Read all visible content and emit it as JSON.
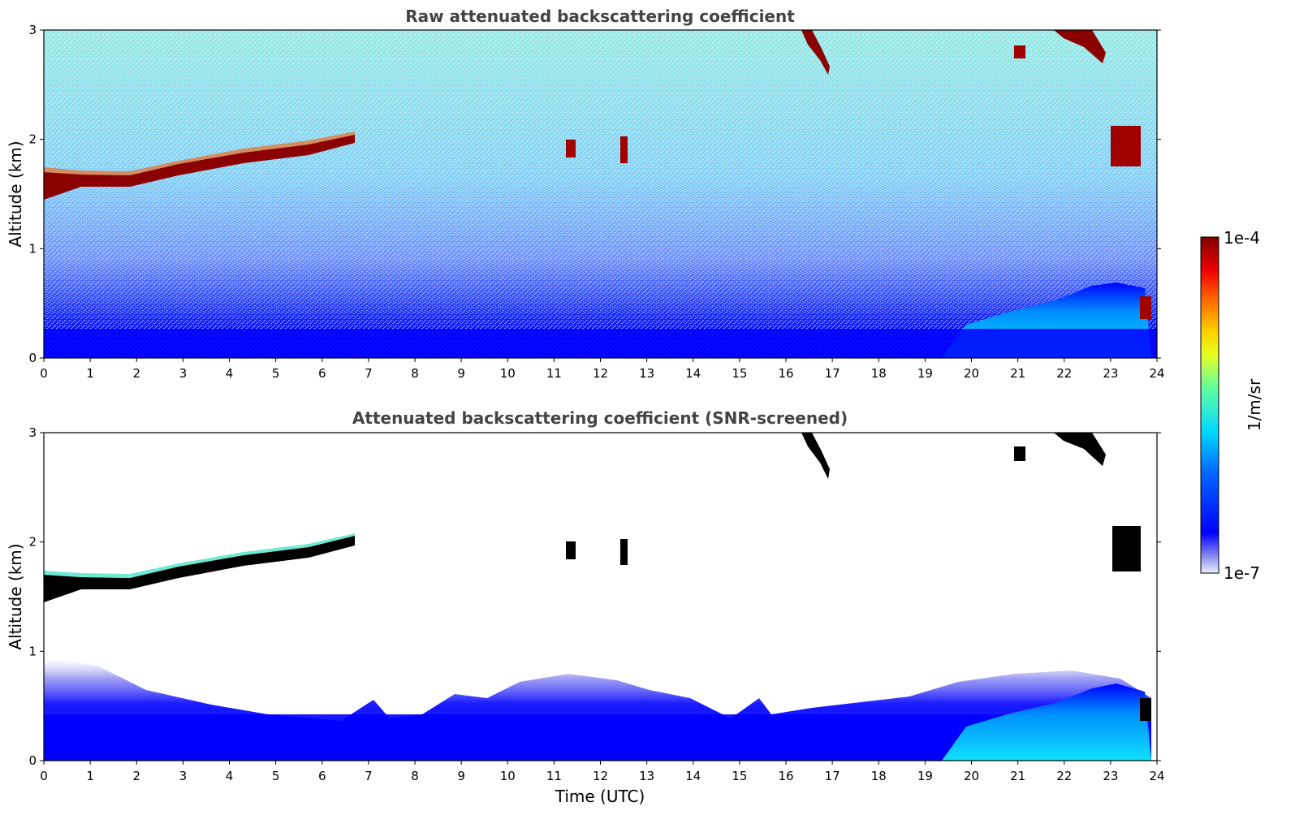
{
  "chart_data": [
    {
      "type": "heatmap",
      "title": "Raw attenuated backscattering coefficient",
      "xlabel": "",
      "ylabel": "Altitude (km)",
      "xlim": [
        0,
        24
      ],
      "ylim": [
        0,
        3
      ],
      "x_ticks": [
        "0",
        "1",
        "2",
        "3",
        "4",
        "5",
        "6",
        "7",
        "8",
        "9",
        "10",
        "11",
        "12",
        "13",
        "14",
        "15",
        "16",
        "17",
        "18",
        "19",
        "20",
        "21",
        "22",
        "23",
        "24"
      ],
      "y_ticks": [
        "0",
        "1",
        "2",
        "3"
      ],
      "features": [
        {
          "kind": "cloud_layer",
          "time_range": [
            0,
            6.7
          ],
          "altitude_km": [
            1.5,
            2.0
          ]
        },
        {
          "kind": "cloud_patch",
          "time": 11.3,
          "altitude_km": 1.9
        },
        {
          "kind": "cloud_patch",
          "time": 12.5,
          "altitude_km": 1.85
        },
        {
          "kind": "cloud_patch",
          "time_range": [
            16.3,
            17.0
          ],
          "altitude_km": [
            2.6,
            3.0
          ]
        },
        {
          "kind": "cloud_patch",
          "time_range": [
            21.7,
            23.0
          ],
          "altitude_km": [
            2.7,
            3.0
          ]
        },
        {
          "kind": "cloud_patch",
          "time_range": [
            23.0,
            23.5
          ],
          "altitude_km": [
            1.8,
            2.1
          ]
        },
        {
          "kind": "boundary_layer",
          "time_range": [
            19.5,
            23.8
          ],
          "altitude_km": [
            0,
            0.7
          ]
        }
      ]
    },
    {
      "type": "heatmap",
      "title": "Attenuated backscattering coefficient (SNR-screened)",
      "xlabel": "Time (UTC)",
      "ylabel": "Altitude (km)",
      "xlim": [
        0,
        24
      ],
      "ylim": [
        0,
        3
      ],
      "x_ticks": [
        "0",
        "1",
        "2",
        "3",
        "4",
        "5",
        "6",
        "7",
        "8",
        "9",
        "10",
        "11",
        "12",
        "13",
        "14",
        "15",
        "16",
        "17",
        "18",
        "19",
        "20",
        "21",
        "22",
        "23",
        "24"
      ],
      "y_ticks": [
        "0",
        "1",
        "2",
        "3"
      ],
      "features": [
        {
          "kind": "cloud_layer",
          "time_range": [
            0,
            6.7
          ],
          "altitude_km": [
            1.5,
            2.0
          ]
        },
        {
          "kind": "aerosol_layer",
          "time_range": [
            0,
            24
          ],
          "altitude_km": [
            0,
            0.5
          ]
        },
        {
          "kind": "boundary_layer",
          "time_range": [
            19.5,
            23.8
          ],
          "altitude_km": [
            0,
            0.7
          ]
        }
      ]
    }
  ],
  "colorbar": {
    "max_label": "1e-4",
    "min_label": "1e-7",
    "unit_label": "1/m/sr",
    "colormap": [
      "#e8e8f8",
      "#9090ee",
      "#0000ff",
      "#0070ff",
      "#00d8ff",
      "#70ffa0",
      "#fff000",
      "#ff8000",
      "#ff0000",
      "#800000"
    ]
  }
}
